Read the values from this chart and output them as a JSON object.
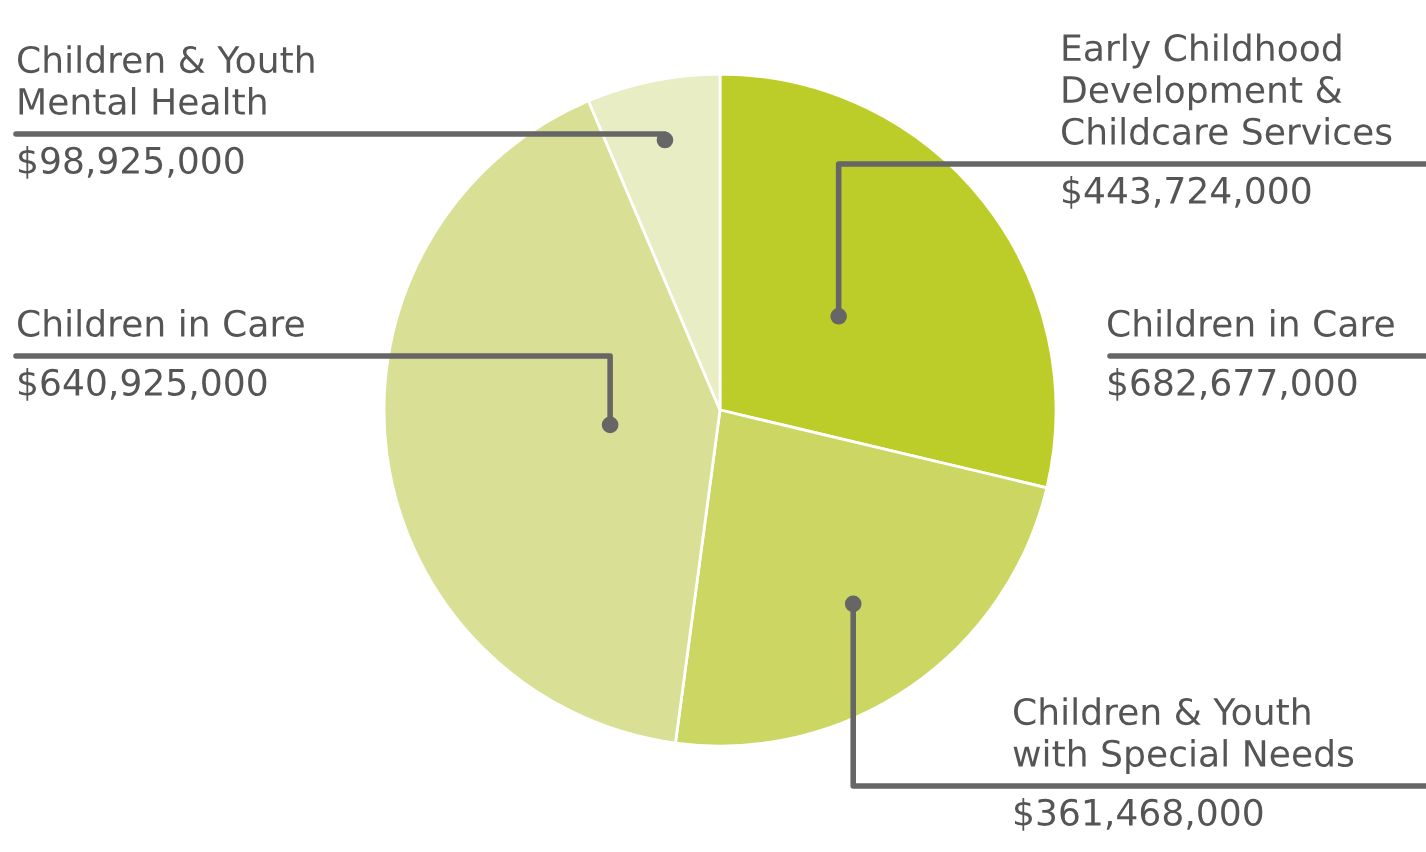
{
  "chart_data": {
    "type": "pie",
    "categories": [
      "Early Childhood\nDevelopment &\nChildcare Services",
      "Children & Youth\nwith Special Needs",
      "Children in Care",
      "Children & Youth\nMental Health"
    ],
    "values": [
      443724000,
      361468000,
      640925000,
      98925000
    ],
    "value_labels": [
      "$443,724,000",
      "$361,468,000",
      "$640,925,000",
      "$98,925,000"
    ],
    "colors": [
      "#bccd2a",
      "#cbd663",
      "#d9e096",
      "#e9edc4"
    ],
    "annotations": [
      "Children in Care",
      "$682,677,000"
    ],
    "legend": false
  }
}
